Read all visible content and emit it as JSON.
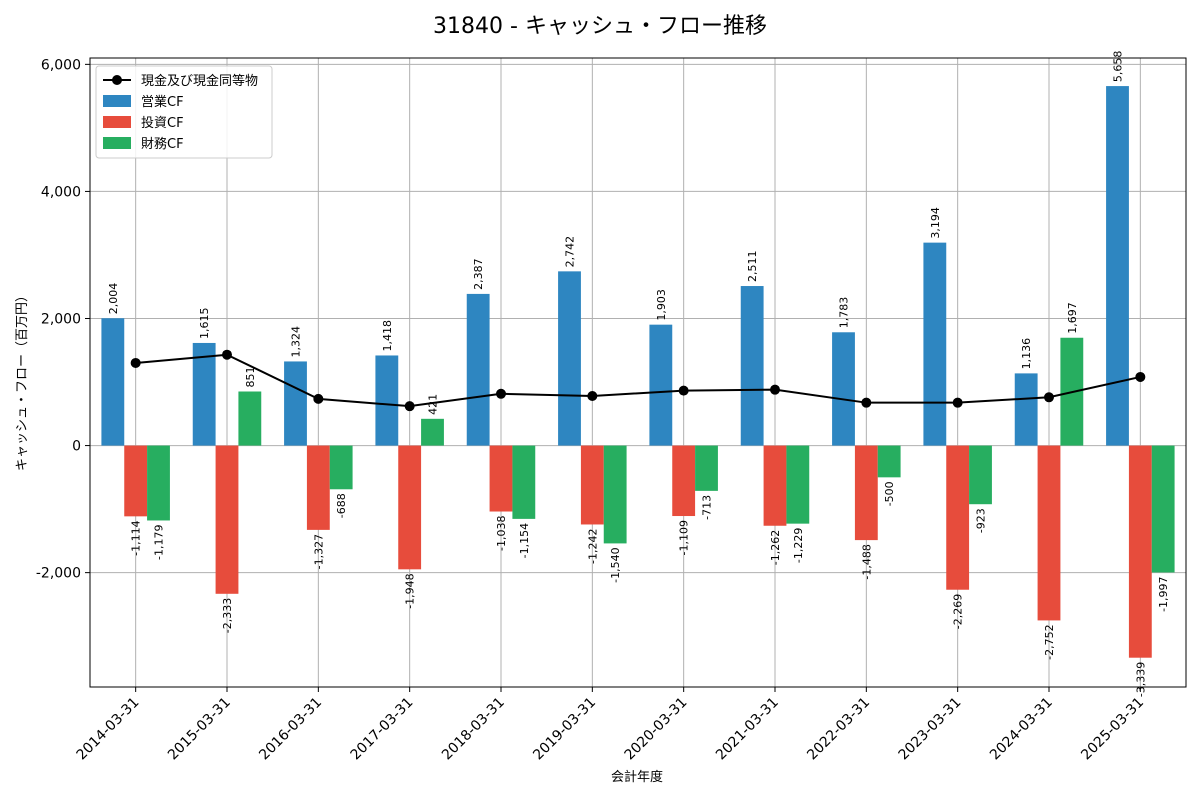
{
  "chart_data": {
    "type": "bar",
    "title": "31840 - キャッシュ・フロー推移",
    "xlabel": "会計年度",
    "ylabel": "キャッシュ・フロー（百万円）",
    "ylim": [
      -3800,
      6100
    ],
    "yticks": [
      -2000,
      0,
      2000,
      4000,
      6000
    ],
    "ytick_labels": [
      "-2,000",
      "0",
      "2,000",
      "4,000",
      "6,000"
    ],
    "grid": true,
    "legend_position": "top-left",
    "categories": [
      "2014-03-31",
      "2015-03-31",
      "2016-03-31",
      "2017-03-31",
      "2018-03-31",
      "2019-03-31",
      "2020-03-31",
      "2021-03-31",
      "2022-03-31",
      "2023-03-31",
      "2024-03-31",
      "2025-03-31"
    ],
    "series": [
      {
        "name": "営業CF",
        "kind": "bar",
        "color": "#2e86c1",
        "values": [
          2004,
          1615,
          1324,
          1418,
          2387,
          2742,
          1903,
          2511,
          1783,
          3194,
          1136,
          5658
        ],
        "labels": [
          "2,004",
          "1,615",
          "1,324",
          "1,418",
          "2,387",
          "2,742",
          "1,903",
          "2,511",
          "1,783",
          "3,194",
          "1,136",
          "5,658"
        ]
      },
      {
        "name": "投資CF",
        "kind": "bar",
        "color": "#e74c3c",
        "values": [
          -1114,
          -2333,
          -1327,
          -1948,
          -1038,
          -1242,
          -1109,
          -1262,
          -1488,
          -2269,
          -2752,
          -3339
        ],
        "labels": [
          "-1,114",
          "-2,333",
          "-1,327",
          "-1,948",
          "-1,038",
          "-1,242",
          "-1,109",
          "-1,262",
          "-1,488",
          "-2,269",
          "-2,752",
          "-3,339"
        ]
      },
      {
        "name": "財務CF",
        "kind": "bar",
        "color": "#27ae60",
        "values": [
          -1179,
          851,
          -688,
          421,
          -1154,
          -1540,
          -713,
          -1229,
          -500,
          -923,
          1697,
          -1997
        ],
        "labels": [
          "-1,179",
          "851",
          "-688",
          "421",
          "-1,154",
          "-1,540",
          "-713",
          "-1,229",
          "-500",
          "-923",
          "1,697",
          "-1,997"
        ]
      },
      {
        "name": "現金及び現金同等物",
        "kind": "line",
        "color": "#000000",
        "values": [
          1300,
          1430,
          735,
          620,
          815,
          780,
          865,
          880,
          675,
          675,
          760,
          1080
        ]
      }
    ]
  }
}
